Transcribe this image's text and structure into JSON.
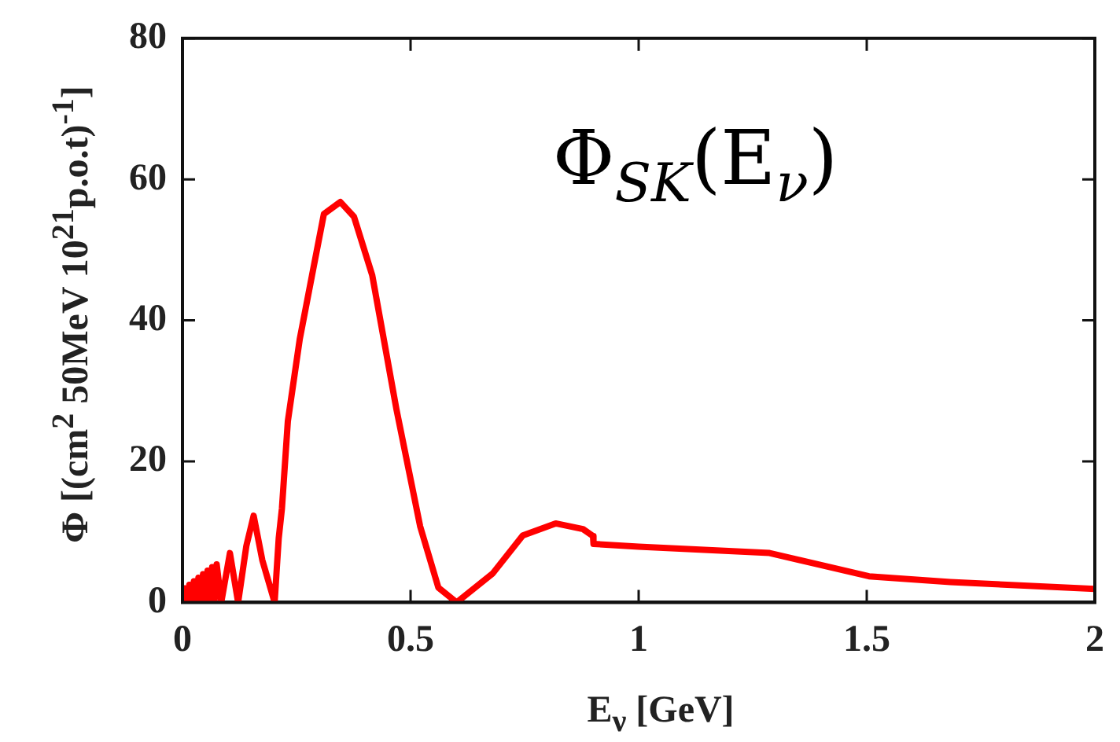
{
  "chart_data": {
    "type": "line",
    "xlabel": "E$_{ν}$ [GeV]",
    "ylabel": "Φ [(cm$^{2}$ 50MeV 10$^{21}$p.o.t)$^{-1}$]",
    "annotations": [
      "Φ$_{SK}$(E$_{ν}$)"
    ],
    "xlim": [
      0,
      2
    ],
    "xticks": [
      0,
      0.5,
      1,
      1.5,
      2
    ],
    "ylim": [
      0,
      80
    ],
    "yticks": [
      0,
      20,
      40,
      60,
      80
    ],
    "grid": false,
    "legend": false,
    "marker": "none",
    "line_style": "solid",
    "series": [
      {
        "color": "#ff0000",
        "x": [
          0,
          0.005,
          0.01,
          0.015,
          0.02,
          0.025,
          0.03,
          0.035,
          0.04,
          0.045,
          0.05,
          0.055,
          0.06,
          0.065,
          0.07,
          0.075,
          0.085,
          0.104,
          0.122,
          0.14,
          0.156,
          0.175,
          0.202,
          0.211,
          0.218,
          0.231,
          0.257,
          0.284,
          0.31,
          0.346,
          0.376,
          0.416,
          0.469,
          0.521,
          0.561,
          0.601,
          0.68,
          0.746,
          0.818,
          0.878,
          0.9,
          0.901,
          1,
          1.287,
          1.505,
          1.683,
          2
        ],
        "values": [
          0.5,
          2,
          0,
          2.5,
          0.3,
          3,
          0.3,
          3.5,
          0.5,
          4,
          0.5,
          4.5,
          0.3,
          5,
          0.2,
          5.4,
          0,
          7,
          0,
          8,
          12.3,
          6,
          0,
          9.1,
          13.3,
          25.7,
          37.3,
          46.4,
          55.1,
          56.8,
          54.7,
          46.4,
          27.4,
          10.8,
          2.1,
          0,
          4.1,
          9.5,
          11.2,
          10.4,
          9.4,
          8.3,
          7.9,
          7,
          3.7,
          2.9,
          1.9
        ]
      }
    ]
  }
}
